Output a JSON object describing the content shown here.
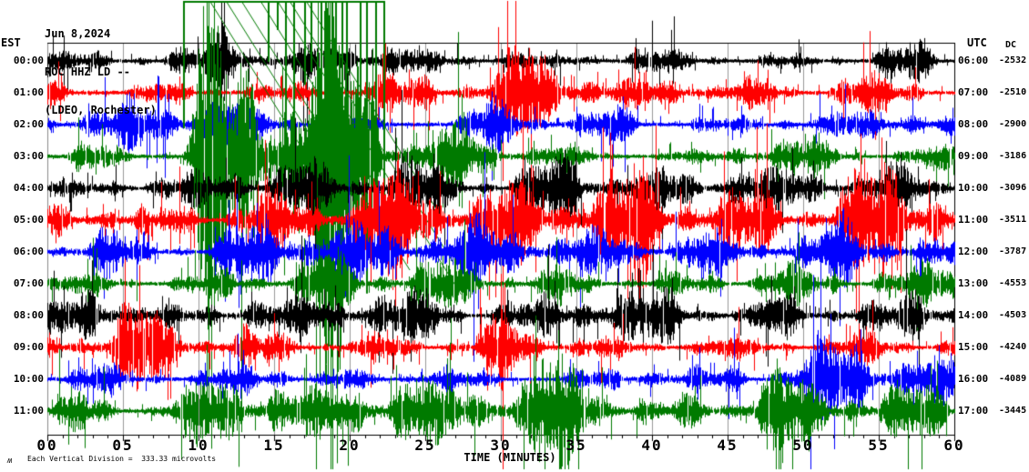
{
  "header": {
    "date": "Jun 8,2024",
    "station": "ROC HHZ LD --",
    "network": "(LDEO, Rochester)"
  },
  "axes": {
    "left_label": "EST",
    "right_label": "UTC",
    "dc_label": "DC",
    "x_label": "TIME (MINUTES)",
    "x_ticks": [
      "00",
      "05",
      "10",
      "15",
      "20",
      "25",
      "30",
      "35",
      "40",
      "45",
      "50",
      "55",
      "60"
    ]
  },
  "footer": {
    "glyph": "ʍ",
    "caption": "Each Vertical Division =  333.33 microvolts"
  },
  "chart_data": {
    "type": "line",
    "kind": "helicorder-seismogram",
    "title": "ROC HHZ LD -- (LDEO, Rochester) Jun 8,2024",
    "xlabel": "TIME (MINUTES)",
    "x_range_minutes": [
      0,
      60
    ],
    "minor_tick_minutes": 1,
    "major_tick_minutes": 5,
    "grid_every_minutes": 5,
    "vertical_division_microvolts": 333.33,
    "timezone_left": "EST",
    "timezone_right": "UTC",
    "color_cycle": [
      "#000000",
      "#ff0000",
      "#0000ff",
      "#007a00"
    ],
    "grid_color": "#999999",
    "border_color": "#000000",
    "left_border_color": "#8a8a8a",
    "rows": [
      {
        "est": "00:00",
        "utc": "06:00",
        "dc": "-2532",
        "color": 0,
        "amp": 11,
        "events": [
          [
            0,
            3,
            1.6
          ],
          [
            10.3,
            14,
            3.0
          ],
          [
            21,
            24.5,
            2.0
          ],
          [
            29,
            31,
            1.6
          ],
          [
            38.5,
            42.5,
            2.6
          ],
          [
            47,
            49,
            1.7
          ],
          [
            54,
            58.5,
            2.8
          ]
        ]
      },
      {
        "est": "01:00",
        "utc": "07:00",
        "dc": "-2510",
        "color": 1,
        "amp": 12,
        "events": [
          [
            5,
            8,
            1.5
          ],
          [
            18.5,
            23.5,
            2.3
          ],
          [
            29,
            35.5,
            1.8
          ],
          [
            41,
            44,
            1.5
          ],
          [
            48,
            60,
            1.9
          ]
        ]
      },
      {
        "est": "02:00",
        "utc": "08:00",
        "dc": "-2900",
        "color": 2,
        "amp": 11,
        "events": [
          [
            2,
            4,
            1.5
          ],
          [
            9,
            13,
            1.9
          ],
          [
            24,
            31,
            1.6
          ],
          [
            40,
            44,
            1.5
          ],
          [
            53,
            60,
            2.0
          ]
        ]
      },
      {
        "est": "03:00",
        "utc": "09:00",
        "dc": "-3186",
        "color": 3,
        "amp": 12,
        "events": [
          [
            9,
            22.3,
            15
          ],
          [
            30,
            36,
            1.5
          ],
          [
            45,
            60,
            1.5
          ]
        ],
        "overflow": [
          9,
          22.3
        ]
      },
      {
        "est": "04:00",
        "utc": "10:00",
        "dc": "-3096",
        "color": 0,
        "amp": 11,
        "events": [
          [
            4,
            6,
            1.5
          ],
          [
            11,
            13.5,
            2.0
          ],
          [
            22,
            25,
            1.5
          ],
          [
            33,
            36,
            1.6
          ],
          [
            44,
            47,
            1.5
          ],
          [
            55,
            58,
            1.6
          ]
        ]
      },
      {
        "est": "05:00",
        "utc": "11:00",
        "dc": "-3511",
        "color": 1,
        "amp": 16,
        "events": [
          [
            0,
            7,
            1.6
          ],
          [
            12,
            16,
            1.5
          ],
          [
            20,
            27,
            1.7
          ],
          [
            33,
            44,
            1.7
          ],
          [
            51,
            60,
            1.7
          ]
        ]
      },
      {
        "est": "06:00",
        "utc": "12:00",
        "dc": "-3787",
        "color": 2,
        "amp": 13,
        "events": [
          [
            3,
            6,
            1.4
          ],
          [
            14,
            18,
            1.5
          ],
          [
            27,
            33,
            1.5
          ],
          [
            41,
            46,
            1.5
          ],
          [
            52,
            58,
            1.5
          ]
        ]
      },
      {
        "est": "07:00",
        "utc": "13:00",
        "dc": "-4553",
        "color": 3,
        "amp": 15,
        "events": [
          [
            5,
            10,
            1.5
          ],
          [
            16,
            20,
            1.4
          ],
          [
            24,
            29,
            1.6
          ],
          [
            36,
            41,
            1.4
          ],
          [
            47,
            53,
            1.5
          ]
        ]
      },
      {
        "est": "08:00",
        "utc": "14:00",
        "dc": "-4503",
        "color": 0,
        "amp": 12,
        "events": [
          [
            2,
            5,
            1.5
          ],
          [
            12,
            15,
            1.6
          ],
          [
            23,
            27,
            1.5
          ],
          [
            34,
            38,
            1.6
          ],
          [
            46,
            50,
            1.5
          ],
          [
            56,
            60,
            1.5
          ]
        ]
      },
      {
        "est": "09:00",
        "utc": "15:00",
        "dc": "-4240",
        "color": 1,
        "amp": 14,
        "events": [
          [
            4,
            8,
            1.5
          ],
          [
            17,
            22,
            1.5
          ],
          [
            28,
            33,
            1.6
          ],
          [
            40,
            46,
            1.5
          ],
          [
            53,
            58,
            1.5
          ]
        ]
      },
      {
        "est": "10:00",
        "utc": "16:00",
        "dc": "-4089",
        "color": 2,
        "amp": 13,
        "events": [
          [
            1,
            4,
            1.5
          ],
          [
            12,
            17,
            1.6
          ],
          [
            26,
            30,
            1.4
          ],
          [
            37,
            42,
            1.5
          ],
          [
            50,
            56,
            1.6
          ]
        ]
      },
      {
        "est": "11:00",
        "utc": "17:00",
        "dc": "-3445",
        "color": 3,
        "amp": 17,
        "events": [
          [
            0,
            5,
            1.4
          ],
          [
            8,
            14,
            1.6
          ],
          [
            19,
            26,
            1.5
          ],
          [
            31,
            38,
            1.5
          ],
          [
            42,
            60,
            1.6
          ]
        ]
      }
    ]
  }
}
